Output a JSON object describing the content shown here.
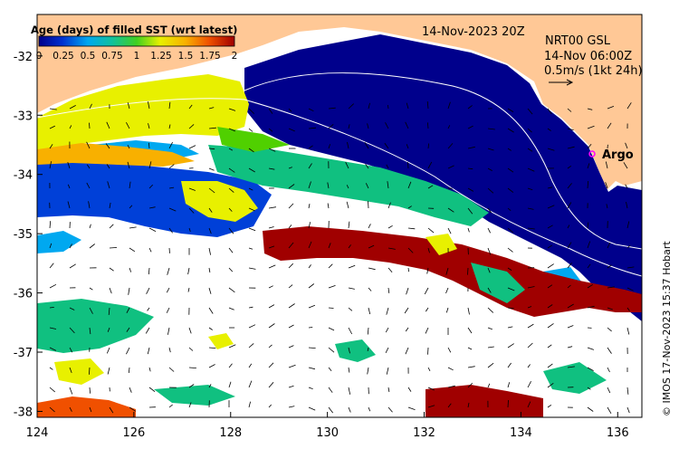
{
  "title": "14-Nov-2023 20Z",
  "colorbar": {
    "title": "Age (days) of filled SST (wrt latest)",
    "tick_labels": [
      "0",
      "0.25",
      "0.5",
      "0.75",
      "1",
      "1.25",
      "1.5",
      "1.75",
      "2"
    ],
    "colors": [
      "#00008c",
      "#0040d8",
      "#00a8f0",
      "#10c080",
      "#50d000",
      "#e8f000",
      "#f8b000",
      "#f05000",
      "#a00000"
    ]
  },
  "gsl_info": {
    "line1": "NRT00 GSL",
    "line2": "14-Nov 06:00Z",
    "line3": "0.5m/s (1kt 24h)"
  },
  "argo_label": "Argo",
  "credit": "© IMOS 17-Nov-2023 15:37 Hobart",
  "axes": {
    "x_ticks": [
      "124",
      "126",
      "128",
      "130",
      "132",
      "134",
      "136"
    ],
    "y_ticks": [
      "-32",
      "-33",
      "-34",
      "-35",
      "-36",
      "-37",
      "-38"
    ],
    "xlim": [
      124,
      136.5
    ],
    "ylim": [
      -38.1,
      -31.3
    ]
  },
  "land_color": "#ffc896",
  "sea_color": "#ffffff"
}
